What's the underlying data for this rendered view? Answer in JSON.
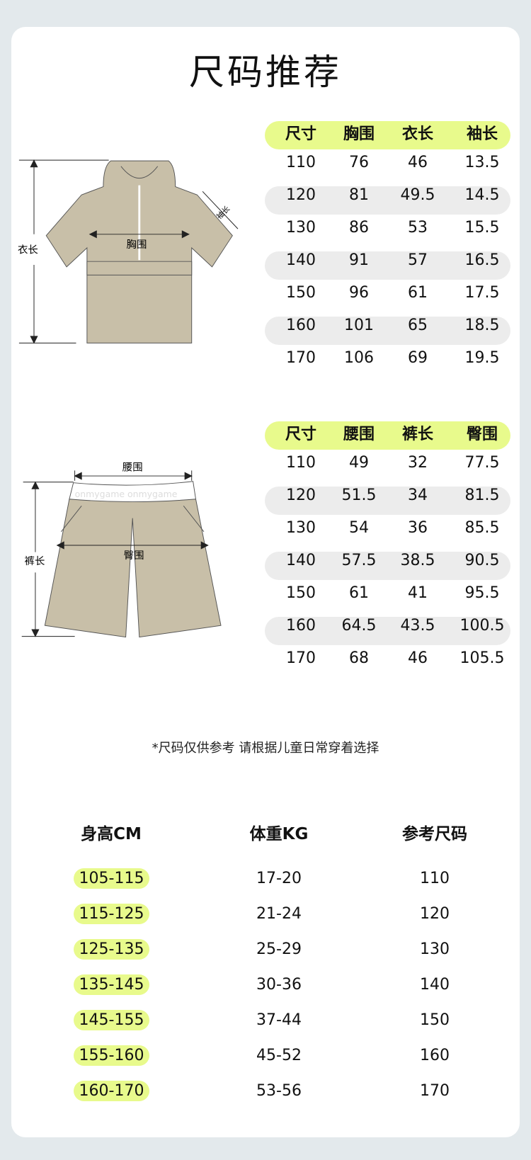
{
  "title": "尺码推荐",
  "colors": {
    "background": "#e3e9ec",
    "accent": "#e8fa8c",
    "stripe": "#ececec",
    "garment": "#c8bfa8"
  },
  "top_diagram": {
    "length_label": "衣长",
    "chest_label": "胸围",
    "sleeve_label": "袖长"
  },
  "top_table": {
    "headers": [
      "尺寸",
      "胸围",
      "衣长",
      "袖长"
    ],
    "rows": [
      [
        "110",
        "76",
        "46",
        "13.5"
      ],
      [
        "120",
        "81",
        "49.5",
        "14.5"
      ],
      [
        "130",
        "86",
        "53",
        "15.5"
      ],
      [
        "140",
        "91",
        "57",
        "16.5"
      ],
      [
        "150",
        "96",
        "61",
        "17.5"
      ],
      [
        "160",
        "101",
        "65",
        "18.5"
      ],
      [
        "170",
        "106",
        "69",
        "19.5"
      ]
    ]
  },
  "pants_diagram": {
    "waist_label": "腰围",
    "length_label": "裤长",
    "hip_label": "臀围",
    "waistband_text": "onmygame  onmygame"
  },
  "pants_table": {
    "headers": [
      "尺寸",
      "腰围",
      "裤长",
      "臀围"
    ],
    "rows": [
      [
        "110",
        "49",
        "32",
        "77.5"
      ],
      [
        "120",
        "51.5",
        "34",
        "81.5"
      ],
      [
        "130",
        "54",
        "36",
        "85.5"
      ],
      [
        "140",
        "57.5",
        "38.5",
        "90.5"
      ],
      [
        "150",
        "61",
        "41",
        "95.5"
      ],
      [
        "160",
        "64.5",
        "43.5",
        "100.5"
      ],
      [
        "170",
        "68",
        "46",
        "105.5"
      ]
    ]
  },
  "note": "*尺码仅供参考   请根据儿童日常穿着选择",
  "recommend": {
    "headers": [
      "身高CM",
      "体重KG",
      "参考尺码"
    ],
    "rows": [
      [
        "105-115",
        "17-20",
        "110"
      ],
      [
        "115-125",
        "21-24",
        "120"
      ],
      [
        "125-135",
        "25-29",
        "130"
      ],
      [
        "135-145",
        "30-36",
        "140"
      ],
      [
        "145-155",
        "37-44",
        "150"
      ],
      [
        "155-160",
        "45-52",
        "160"
      ],
      [
        "160-170",
        "53-56",
        "170"
      ]
    ]
  }
}
